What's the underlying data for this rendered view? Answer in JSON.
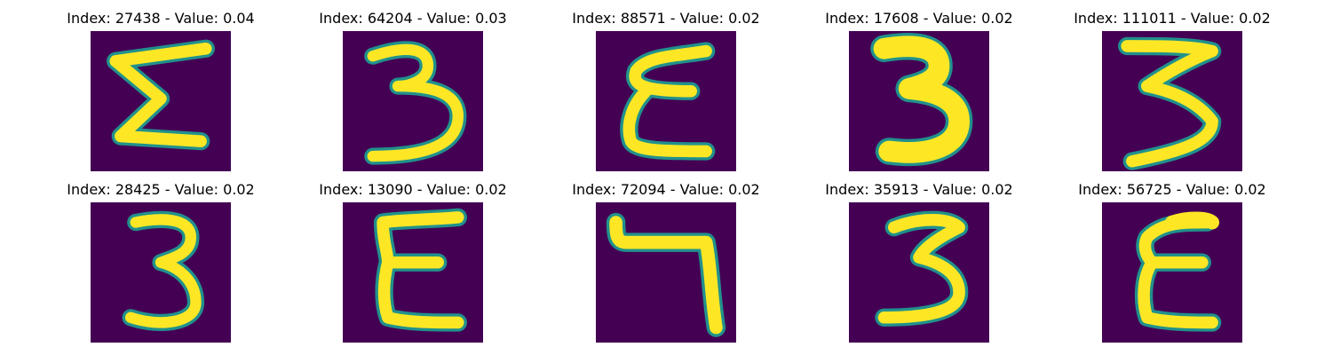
{
  "colors": {
    "background": "#440154",
    "mid": "#21918c",
    "stroke": "#fde725"
  },
  "panels": [
    {
      "title": "Index: 27438 - Value: 0.04",
      "glyph": "sigma-like-3"
    },
    {
      "title": "Index: 64204 - Value: 0.03",
      "glyph": "3"
    },
    {
      "title": "Index: 88571 - Value: 0.02",
      "glyph": "epsilon-like-3"
    },
    {
      "title": "Index: 17608 - Value: 0.02",
      "glyph": "bold-3"
    },
    {
      "title": "Index: 111011 - Value: 0.02",
      "glyph": "3"
    },
    {
      "title": "Index: 28425 - Value: 0.02",
      "glyph": "3"
    },
    {
      "title": "Index: 13090 - Value: 0.02",
      "glyph": "epsilon-like-3"
    },
    {
      "title": "Index: 72094 - Value: 0.02",
      "glyph": "7-like"
    },
    {
      "title": "Index: 35913 - Value: 0.02",
      "glyph": "3"
    },
    {
      "title": "Index: 56725 - Value: 0.02",
      "glyph": "epsilon-like-3"
    }
  ]
}
